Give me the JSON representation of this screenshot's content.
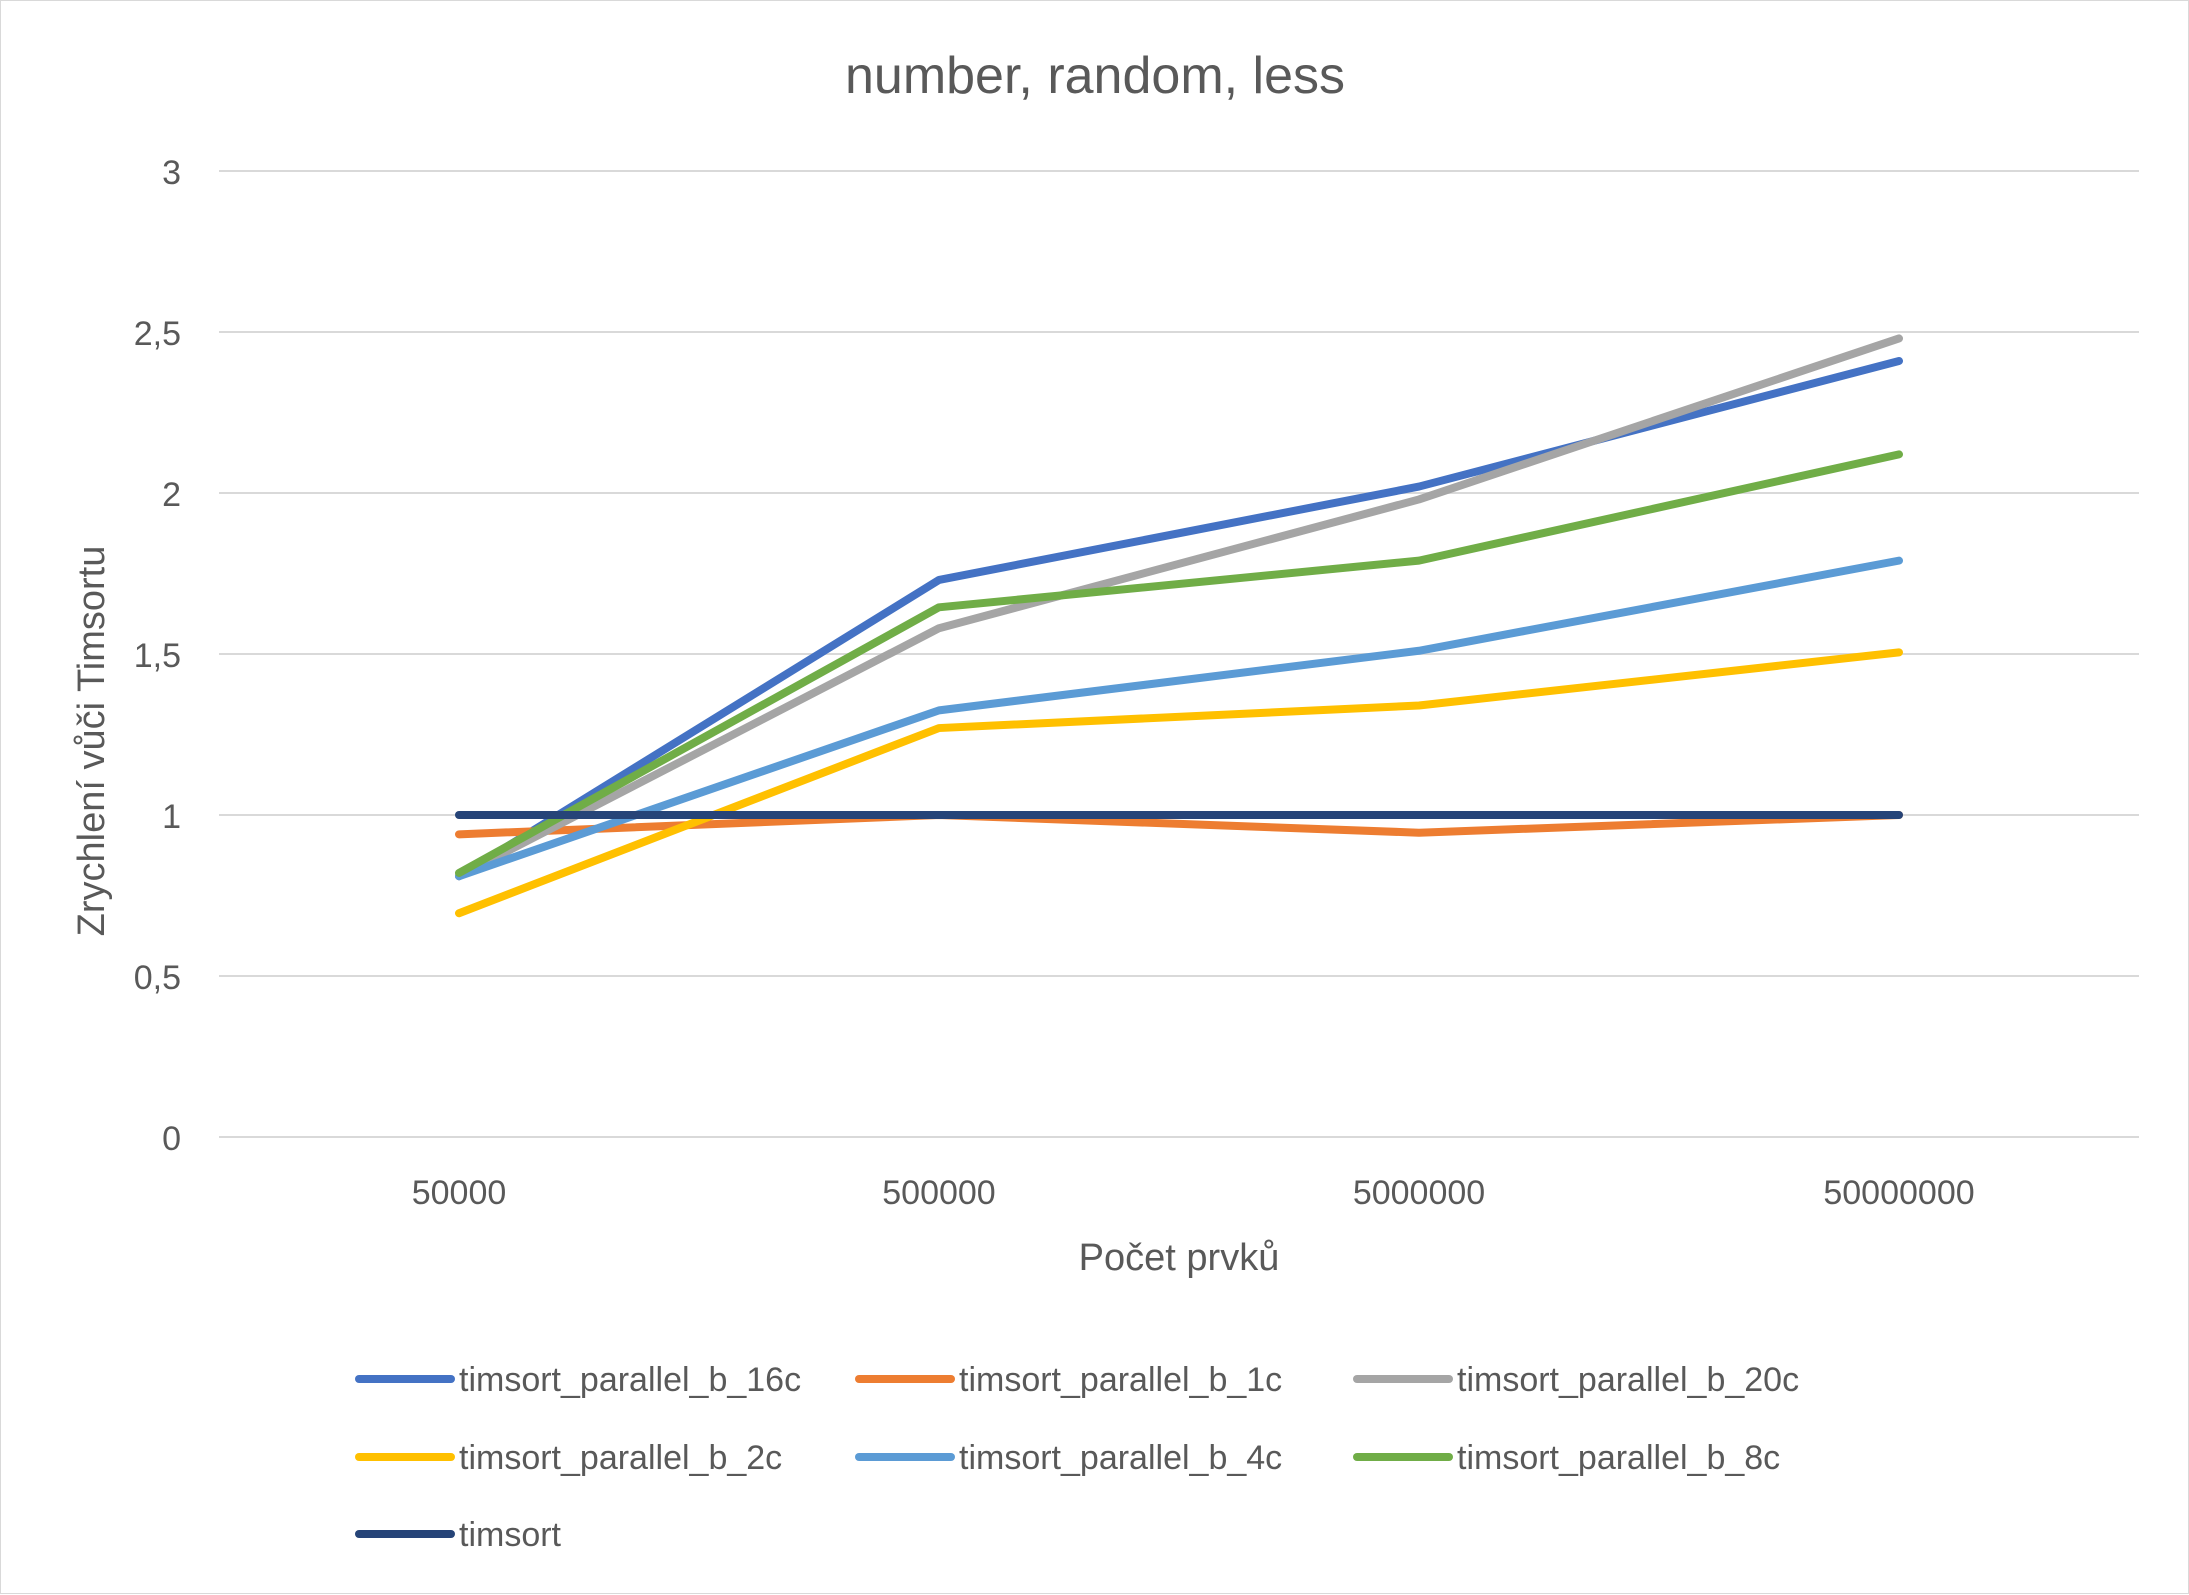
{
  "chart_data": {
    "type": "line",
    "title": "number, random, less",
    "xlabel": "Počet prvků",
    "ylabel": "Zrychlení vůči Timsortu",
    "categories": [
      "50000",
      "500000",
      "5000000",
      "50000000"
    ],
    "ylim": [
      0,
      3
    ],
    "yticks": [
      "0",
      "0,5",
      "1",
      "1,5",
      "2",
      "2,5",
      "3"
    ],
    "grid": true,
    "legend_position": "bottom",
    "series": [
      {
        "name": "timsort_parallel_b_16c",
        "color": "#4472c4",
        "values": [
          0.81,
          1.73,
          2.02,
          2.41
        ]
      },
      {
        "name": "timsort_parallel_b_1c",
        "color": "#ed7d31",
        "values": [
          0.94,
          1.0,
          0.945,
          1.0
        ]
      },
      {
        "name": "timsort_parallel_b_20c",
        "color": "#a5a5a5",
        "values": [
          0.81,
          1.58,
          1.98,
          2.48
        ]
      },
      {
        "name": "timsort_parallel_b_2c",
        "color": "#ffc000",
        "values": [
          0.695,
          1.27,
          1.34,
          1.505
        ]
      },
      {
        "name": "timsort_parallel_b_4c",
        "color": "#5b9bd5",
        "values": [
          0.81,
          1.325,
          1.51,
          1.79
        ]
      },
      {
        "name": "timsort_parallel_b_8c",
        "color": "#70ad47",
        "values": [
          0.82,
          1.645,
          1.79,
          2.12
        ]
      },
      {
        "name": "timsort",
        "color": "#264478",
        "values": [
          1.0,
          1.0,
          1.0,
          1.0
        ]
      }
    ]
  }
}
